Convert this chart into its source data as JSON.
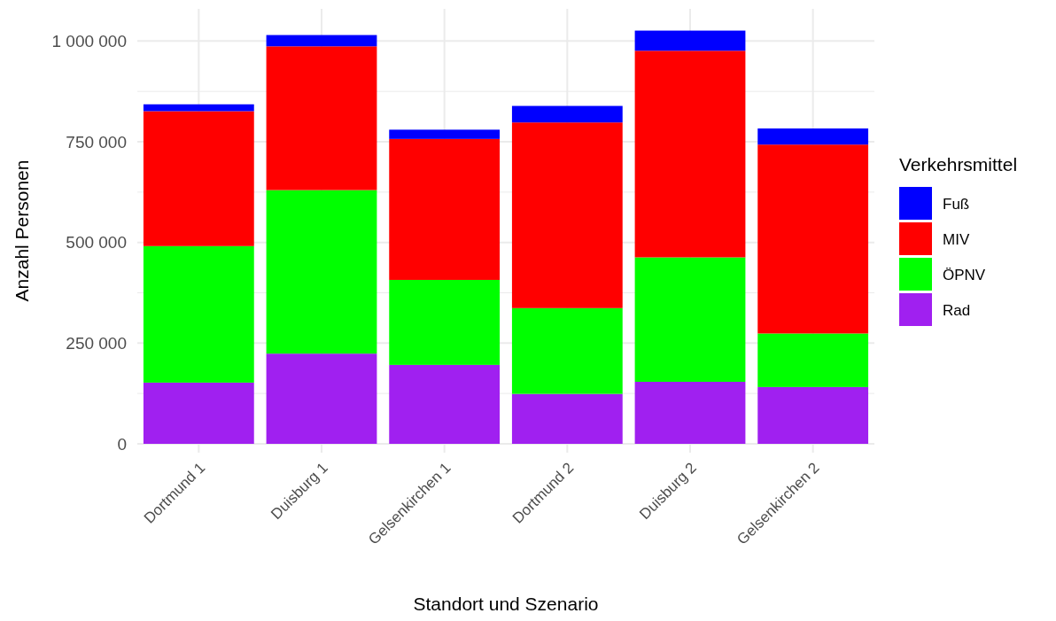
{
  "chart_data": {
    "type": "bar",
    "stacked": true,
    "xlabel": "Standort und Szenario",
    "ylabel": "Anzahl Personen",
    "legend_title": "Verkehrsmittel",
    "legend": "right",
    "grid": true,
    "categories": [
      "Dortmund 1",
      "Duisburg 1",
      "Gelsenkirchen 1",
      "Dortmund 2",
      "Duisburg 2",
      "Gelsenkirchen 2"
    ],
    "ylim": [
      -22000,
      1080000
    ],
    "yticks": [
      0,
      {
        "value": 250000,
        "label": "250 000"
      },
      {
        "value": 500000,
        "label": "500 000"
      },
      {
        "value": 750000,
        "label": "750 000"
      },
      {
        "value": 1000000,
        "label": "1 000 000"
      }
    ],
    "series": [
      {
        "name": "Rad",
        "color": "#a020f0",
        "values": [
          152000,
          224000,
          196000,
          124000,
          154000,
          141000
        ]
      },
      {
        "name": "ÖPNV",
        "color": "#00ff00",
        "values": [
          339000,
          406000,
          211000,
          213000,
          309000,
          133000
        ]
      },
      {
        "name": "MIV",
        "color": "#ff0000",
        "values": [
          335000,
          357000,
          350000,
          461000,
          513000,
          469000
        ]
      },
      {
        "name": "Fuß",
        "color": "#0000ff",
        "values": [
          17000,
          28000,
          23000,
          41000,
          50000,
          40000
        ]
      }
    ]
  }
}
